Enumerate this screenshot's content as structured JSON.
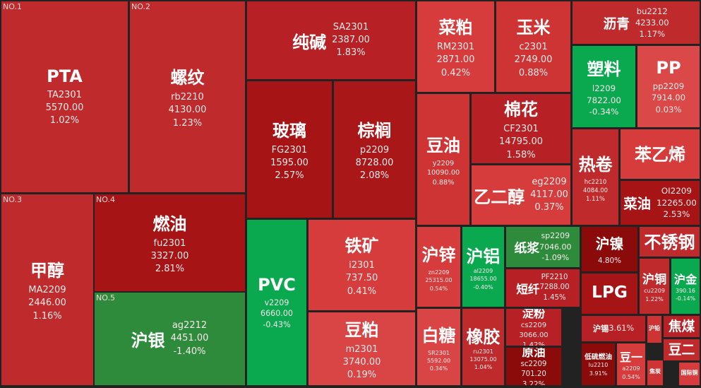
{
  "tiles": [
    {
      "name": "PTA",
      "rank": "NO.1",
      "code": "TA2301",
      "price": "5570.00",
      "change": "1.02%",
      "color": "#bf2a2c"
    },
    {
      "name": "螺纹",
      "rank": "NO.2",
      "code": "rb2210",
      "price": "4130.00",
      "change": "1.23%",
      "color": "#bf2a2c"
    },
    {
      "name": "甲醇",
      "rank": "NO.3",
      "code": "MA2209",
      "price": "2446.00",
      "change": "1.16%",
      "color": "#bf2a2c"
    },
    {
      "name": "燃油",
      "rank": "NO.4",
      "code": "fu2301",
      "price": "3327.00",
      "change": "2.81%",
      "color": "#a61416"
    },
    {
      "name": "沪银",
      "rank": "NO.5",
      "code": "ag2212",
      "price": "4451.00",
      "change": "-1.40%",
      "color": "#2e8b3c"
    },
    {
      "name": "纯碱",
      "code": "SA2301",
      "price": "2387.00",
      "change": "1.83%",
      "color": "#b72024"
    },
    {
      "name": "玻璃",
      "code": "FG2301",
      "price": "1595.00",
      "change": "2.57%",
      "color": "#a61416"
    },
    {
      "name": "棕榈",
      "code": "p2209",
      "price": "8728.00",
      "change": "2.08%",
      "color": "#aa1719"
    },
    {
      "name": "PVC",
      "code": "v2209",
      "price": "6660.00",
      "change": "-0.43%",
      "color": "#0aa84f"
    },
    {
      "name": "铁矿",
      "code": "i2301",
      "price": "737.50",
      "change": "0.41%",
      "color": "#d63c3c"
    },
    {
      "name": "豆粕",
      "code": "m2301",
      "price": "3740.00",
      "change": "0.19%",
      "color": "#d94444"
    },
    {
      "name": "菜粕",
      "code": "RM2301",
      "price": "2871.00",
      "change": "0.42%",
      "color": "#d63c3c"
    },
    {
      "name": "玉米",
      "code": "c2301",
      "price": "2749.00",
      "change": "0.88%",
      "color": "#cf3434"
    },
    {
      "name": "沥青",
      "code": "bu2212",
      "price": "4233.00",
      "change": "1.17%",
      "color": "#bf2a2c"
    },
    {
      "name": "塑料",
      "code": "l2209",
      "price": "7822.00",
      "change": "-0.34%",
      "color": "#0aa84f"
    },
    {
      "name": "PP",
      "code": "pp2209",
      "price": "7914.00",
      "change": "0.03%",
      "color": "#da4848"
    },
    {
      "name": "豆油",
      "code": "y2209",
      "price": "10090.00",
      "change": "0.88%",
      "color": "#cf3434"
    },
    {
      "name": "棉花",
      "code": "CF2301",
      "price": "14795.00",
      "change": "1.58%",
      "color": "#b72024"
    },
    {
      "name": "乙二醇",
      "code": "eg2209",
      "price": "4117.00",
      "change": "0.37%",
      "color": "#d63c3c"
    },
    {
      "name": "热卷",
      "code": "hc2210",
      "price": "4084.00",
      "change": "1.11%",
      "color": "#bf2a2c"
    },
    {
      "name": "苯乙烯",
      "color": "#d63c3c"
    },
    {
      "name": "菜油",
      "code": "OI2209",
      "price": "12265.00",
      "change": "2.53%",
      "color": "#a61416"
    },
    {
      "name": "沪锌",
      "code": "zn2209",
      "price": "25315.00",
      "change": "0.54%",
      "color": "#d63c3c"
    },
    {
      "name": "沪铝",
      "code": "al2209",
      "price": "18655.00",
      "change": "-0.40%",
      "color": "#0aa84f"
    },
    {
      "name": "纸浆",
      "code": "sp2209",
      "price": "7046.00",
      "change": "-1.09%",
      "color": "#2e8b3c"
    },
    {
      "name": "短纤",
      "code": "PF2210",
      "price": "7288.00",
      "change": "1.45%",
      "color": "#b72024"
    },
    {
      "name": "沪镍",
      "change": "4.80%",
      "color": "#8b0a0a"
    },
    {
      "name": "不锈钢",
      "color": "#bf2a2c"
    },
    {
      "name": "LPG",
      "color": "#a61416"
    },
    {
      "name": "沪铜",
      "code": "cu2209",
      "change": "1.22%",
      "color": "#bf2a2c"
    },
    {
      "name": "沪金",
      "price": "390.16",
      "change": "-0.14%",
      "color": "#0aa84f"
    },
    {
      "name": "白糖",
      "code": "SR2301",
      "price": "5592.00",
      "change": "0.34%",
      "color": "#d94444"
    },
    {
      "name": "橡胶",
      "code": "ru2301",
      "price": "13075.00",
      "change": "1.04%",
      "color": "#bf2a2c"
    },
    {
      "name": "淀粉",
      "code": "cs2209",
      "price": "3066.00",
      "change": "1.42%",
      "color": "#b72024"
    },
    {
      "name": "原油",
      "code": "sc2209",
      "price": "701.20",
      "change": "3.22%",
      "color": "#8b0a0a"
    },
    {
      "name": "沪锡",
      "change": "3.61%",
      "color": "#b72024"
    },
    {
      "name": "低硫燃油",
      "code": "lu2210",
      "change": "3.91%",
      "color": "#8b0a0a"
    },
    {
      "name": "豆一",
      "code": "a2209",
      "change": "0.54%",
      "color": "#d63c3c"
    },
    {
      "name": "沪铅",
      "color": "#cf3434"
    },
    {
      "name": "焦煤",
      "color": "#b72024"
    },
    {
      "name": "豆二",
      "color": "#bf2a2c"
    },
    {
      "name": "焦炭",
      "color": "#cf3434"
    },
    {
      "name": "国际铜",
      "color": "#d63c3c"
    }
  ]
}
